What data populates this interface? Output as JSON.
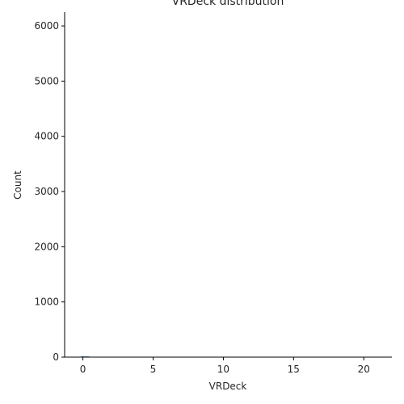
{
  "chart_data": {
    "type": "bar",
    "title": "VRDeck distribution",
    "xlabel": "VRDeck",
    "ylabel": "Count",
    "xlim": [
      -1.3,
      22.0
    ],
    "ylim": [
      0,
      6250
    ],
    "xticks": [
      "0",
      "5",
      "10",
      "15",
      "20"
    ],
    "xtick_values": [
      0,
      5,
      10,
      15,
      20
    ],
    "yticks": [
      "0",
      "1000",
      "2000",
      "3000",
      "4000",
      "5000",
      "6000"
    ],
    "ytick_values": [
      0,
      1000,
      2000,
      3000,
      4000,
      5000,
      6000
    ],
    "grid": false,
    "series": [
      {
        "bins": [
          [
            -0.15,
            0.15
          ],
          [
            0.15,
            0.45
          ]
        ],
        "values": [
          15,
          3
        ],
        "color": "#1f77b4"
      }
    ]
  }
}
